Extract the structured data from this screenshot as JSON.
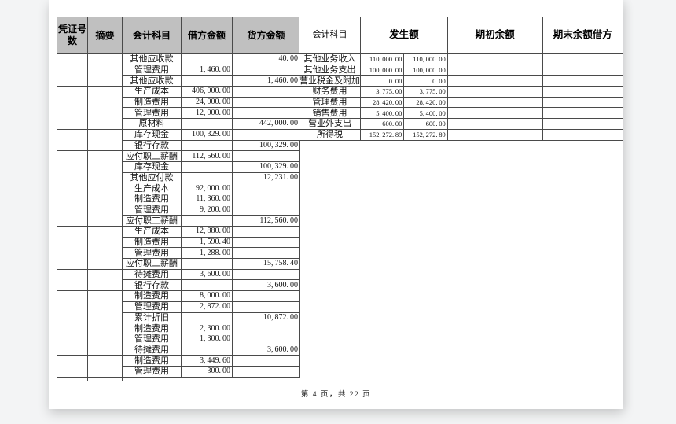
{
  "page": {
    "footer": "第 4 页，共 22 页"
  },
  "colors": {
    "header_fill": "#c0c0c0",
    "border": "#4a4a4a",
    "canvas_bg": "#f3f4f5",
    "page_bg": "#ffffff"
  },
  "journal_table": {
    "headers": {
      "voucher_no": "凭证号数",
      "summary": "摘要",
      "account": "会计科目",
      "debit": "借方金额",
      "credit": "货方金额"
    },
    "groups": [
      {
        "rows": [
          {
            "account": "其他应收款",
            "debit": "",
            "credit": "40.00"
          }
        ]
      },
      {
        "rows": [
          {
            "account": "管理费用",
            "debit": "1,460.00",
            "credit": ""
          },
          {
            "account": "其他应收款",
            "debit": "",
            "credit": "1,460.00"
          }
        ]
      },
      {
        "rows": [
          {
            "account": "生产成本",
            "debit": "406,000.00",
            "credit": ""
          },
          {
            "account": "制造费用",
            "debit": "24,000.00",
            "credit": ""
          },
          {
            "account": "管理费用",
            "debit": "12,000.00",
            "credit": ""
          },
          {
            "account": "原材料",
            "debit": "",
            "credit": "442,000.00"
          }
        ]
      },
      {
        "rows": [
          {
            "account": "库存现金",
            "debit": "100,329.00",
            "credit": ""
          },
          {
            "account": "银行存款",
            "debit": "",
            "credit": "100,329.00"
          }
        ]
      },
      {
        "rows": [
          {
            "account": "应付职工薪酬",
            "debit": "112,560.00",
            "credit": ""
          },
          {
            "account": "库存现金",
            "debit": "",
            "credit": "100,329.00"
          },
          {
            "account": "其他应付款",
            "debit": "",
            "credit": "12,231.00"
          }
        ]
      },
      {
        "rows": [
          {
            "account": "生产成本",
            "debit": "92,000.00",
            "credit": ""
          },
          {
            "account": "制造费用",
            "debit": "11,360.00",
            "credit": ""
          },
          {
            "account": "管理费用",
            "debit": "9,200.00",
            "credit": ""
          },
          {
            "account": "应付职工薪酬",
            "debit": "",
            "credit": "112,560.00"
          }
        ]
      },
      {
        "rows": [
          {
            "account": "生产成本",
            "debit": "12,880.00",
            "credit": ""
          },
          {
            "account": "制造费用",
            "debit": "1,590.40",
            "credit": ""
          },
          {
            "account": "管理费用",
            "debit": "1,288.00",
            "credit": ""
          },
          {
            "account": "应付职工薪酬",
            "debit": "",
            "credit": "15,758.40"
          }
        ]
      },
      {
        "rows": [
          {
            "account": "待摊费用",
            "debit": "3,600.00",
            "credit": ""
          },
          {
            "account": "银行存款",
            "debit": "",
            "credit": "3,600.00"
          }
        ]
      },
      {
        "rows": [
          {
            "account": "制造费用",
            "debit": "8,000.00",
            "credit": ""
          },
          {
            "account": "管理费用",
            "debit": "2,872.00",
            "credit": ""
          },
          {
            "account": "累计折旧",
            "debit": "",
            "credit": "10,872.00"
          }
        ]
      },
      {
        "rows": [
          {
            "account": "制造费用",
            "debit": "2,300.00",
            "credit": ""
          },
          {
            "account": "管理费用",
            "debit": "1,300.00",
            "credit": ""
          },
          {
            "account": "待摊费用",
            "debit": "",
            "credit": "3,600.00"
          }
        ]
      },
      {
        "rows": [
          {
            "account": "制造费用",
            "debit": "3,449.60",
            "credit": ""
          },
          {
            "account": "管理费用",
            "debit": "300.00",
            "credit": ""
          }
        ]
      }
    ]
  },
  "summary_table": {
    "headers": {
      "account": "会计科目",
      "amount": "发生额",
      "opening": "期初余额",
      "closing": "期末余额借方"
    },
    "rows": [
      {
        "account": "其他业务收入",
        "amount_debit": "110,000.00",
        "amount_credit": "110,000.00",
        "opening_debit": "",
        "opening_credit": "",
        "closing_debit": "",
        "closing_credit": ""
      },
      {
        "account": "其他业务支出",
        "amount_debit": "100,000.00",
        "amount_credit": "100,000.00",
        "opening_debit": "",
        "opening_credit": "",
        "closing_debit": "",
        "closing_credit": ""
      },
      {
        "account": "营业税金及附加",
        "amount_debit": "0.00",
        "amount_credit": "0.00",
        "opening_debit": "",
        "opening_credit": "",
        "closing_debit": "",
        "closing_credit": ""
      },
      {
        "account": "财务费用",
        "amount_debit": "3,775.00",
        "amount_credit": "3,775.00",
        "opening_debit": "",
        "opening_credit": "",
        "closing_debit": "",
        "closing_credit": ""
      },
      {
        "account": "管理费用",
        "amount_debit": "28,420.00",
        "amount_credit": "28,420.00",
        "opening_debit": "",
        "opening_credit": "",
        "closing_debit": "",
        "closing_credit": ""
      },
      {
        "account": "销售费用",
        "amount_debit": "5,400.00",
        "amount_credit": "5,400.00",
        "opening_debit": "",
        "opening_credit": "",
        "closing_debit": "",
        "closing_credit": ""
      },
      {
        "account": "营业外支出",
        "amount_debit": "600.00",
        "amount_credit": "600.00",
        "opening_debit": "",
        "opening_credit": "",
        "closing_debit": "",
        "closing_credit": ""
      },
      {
        "account": "所得税",
        "amount_debit": "152,272.89",
        "amount_credit": "152,272.89",
        "opening_debit": "",
        "opening_credit": "",
        "closing_debit": "",
        "closing_credit": ""
      }
    ]
  }
}
